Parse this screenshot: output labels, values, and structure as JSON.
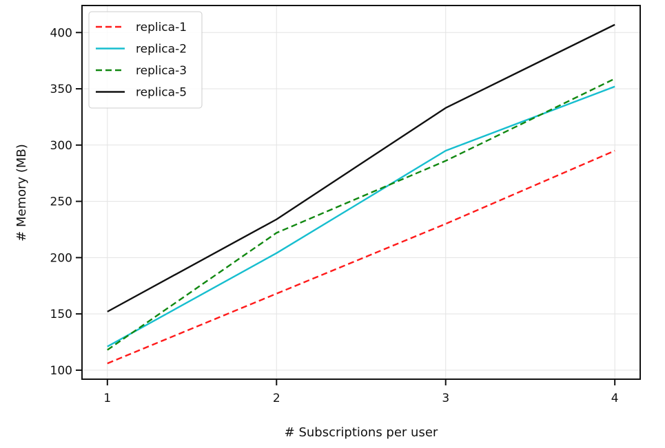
{
  "chart_data": {
    "type": "line",
    "xlabel": "# Subscriptions per user",
    "ylabel": "# Memory (MB)",
    "x": [
      1,
      2,
      3,
      4
    ],
    "xlim": [
      0.85,
      4.15
    ],
    "ylim": [
      92,
      424
    ],
    "xticks": [
      1,
      2,
      3,
      4
    ],
    "yticks": [
      100,
      150,
      200,
      250,
      300,
      350,
      400
    ],
    "grid": true,
    "legend_position": "top-left",
    "series": [
      {
        "name": "replica-1",
        "values": [
          106,
          168,
          230,
          295
        ],
        "color": "#ff1a1a",
        "dashed": true
      },
      {
        "name": "replica-2",
        "values": [
          121,
          204,
          295,
          352
        ],
        "color": "#17becf",
        "dashed": false
      },
      {
        "name": "replica-3",
        "values": [
          118,
          222,
          286,
          359
        ],
        "color": "#118811",
        "dashed": true
      },
      {
        "name": "replica-5",
        "values": [
          152,
          234,
          333,
          407
        ],
        "color": "#111111",
        "dashed": false
      }
    ]
  }
}
